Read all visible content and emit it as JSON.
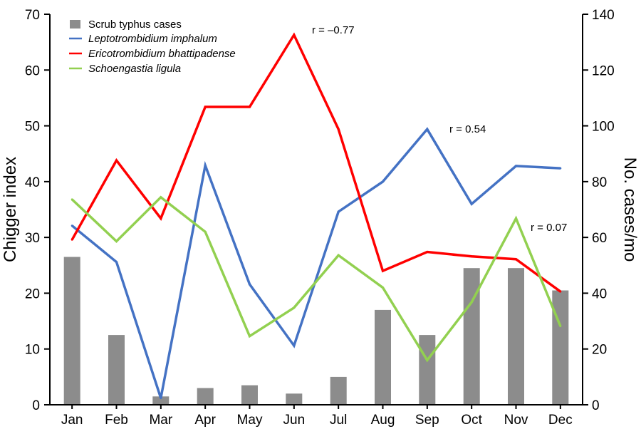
{
  "chart_data": {
    "type": "bar+line",
    "categories": [
      "Jan",
      "Feb",
      "Mar",
      "Apr",
      "May",
      "Jun",
      "Jul",
      "Aug",
      "Sep",
      "Oct",
      "Nov",
      "Dec"
    ],
    "ylabel_left": "Chigger index",
    "ylabel_right": "No. cases/mo",
    "ylim_left": [
      0,
      70
    ],
    "ylim_right": [
      0,
      140
    ],
    "yticks_left": [
      "0",
      "10",
      "20",
      "30",
      "40",
      "50",
      "60",
      "70"
    ],
    "yticks_right": [
      "0",
      "20",
      "40",
      "60",
      "80",
      "100",
      "120",
      "140"
    ],
    "grid": false,
    "legend_position": "top-left",
    "bars": {
      "name": "Scrub typhus cases",
      "axis": "right",
      "color": "#8c8c8c",
      "values": [
        53,
        25,
        3,
        6,
        7,
        4,
        10,
        34,
        25,
        49,
        49,
        41
      ]
    },
    "series": [
      {
        "name": "Leptotrombidium imphalum",
        "axis": "left",
        "color": "#4472c4",
        "values": [
          32.1,
          25.6,
          1.2,
          42.9,
          21.6,
          10.6,
          34.6,
          40.0,
          49.4,
          36.0,
          42.8,
          42.4
        ]
      },
      {
        "name": "Ericotrombidium bhattipadense",
        "axis": "left",
        "color": "#ff0000",
        "values": [
          29.6,
          43.8,
          33.4,
          53.4,
          53.4,
          66.3,
          49.4,
          24.0,
          27.4,
          26.6,
          26.1,
          20.3
        ]
      },
      {
        "name": "Schoengastia ligula",
        "axis": "left",
        "color": "#92d050",
        "values": [
          36.8,
          29.3,
          37.2,
          31.0,
          12.3,
          17.4,
          26.8,
          21.0,
          8.0,
          18.4,
          33.4,
          14.1
        ]
      }
    ],
    "annotations": [
      {
        "text": "r = –0.77",
        "series": "Ericotrombidium bhattipadense"
      },
      {
        "text": "r = 0.54",
        "series": "Leptotrombidium imphalum"
      },
      {
        "text": "r = 0.07",
        "series": "Schoengastia ligula"
      }
    ]
  }
}
